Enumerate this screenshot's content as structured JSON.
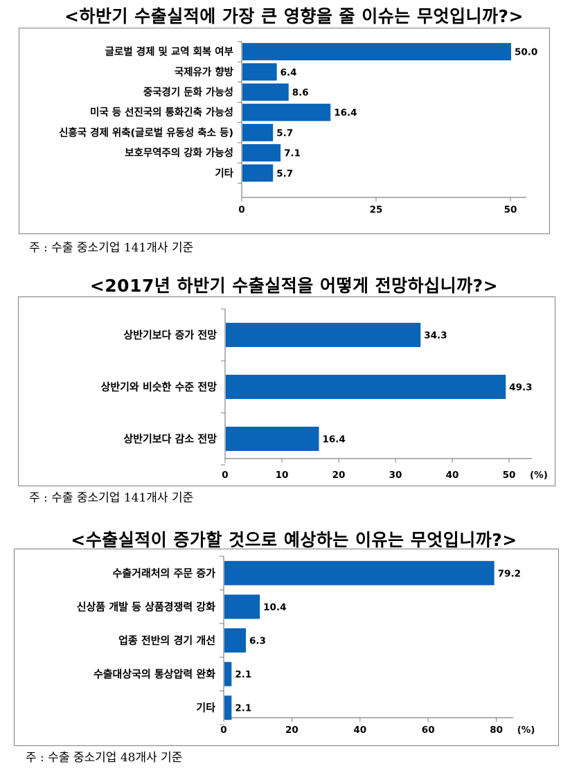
{
  "charts": [
    {
      "title": "<하반기 수출실적에 가장 큰 영향을 줄 이슈는 무엇입니까?>",
      "note": "주 : 수출 중소기업 141개사 기준",
      "axis_unit": ""
    },
    {
      "title": "<2017년 하반기 수출실적을 어떻게 전망하십니까?>",
      "note": "주 : 수출 중소기업 141개사 기준",
      "axis_unit": "(%)"
    },
    {
      "title": "<수출실적이 증가할 것으로 예상하는 이유는 무엇입니까?>",
      "note": "주 : 수출 중소기업 48개사 기준",
      "axis_unit": "(%)"
    }
  ],
  "colors": {
    "bar": "#0a64b8",
    "frame": "#7f7f7f",
    "axis": "#808080"
  },
  "chart_data": [
    {
      "type": "bar",
      "orientation": "horizontal",
      "title": "<하반기 수출실적에 가장 큰 영향을 줄 이슈는 무엇입니까?>",
      "categories": [
        "글로벌 경제 및 교역 회복 여부",
        "국제유가 향방",
        "중국경기 둔화 가능성",
        "미국 등 선진국의 통화긴축 가능성",
        "신흥국 경제 위축(글로벌 유동성 축소 등)",
        "보호무역주의 강화 가능성",
        "기타"
      ],
      "values": [
        50.0,
        6.4,
        8.6,
        16.4,
        5.7,
        7.1,
        5.7
      ],
      "value_labels": [
        "50.0",
        "6.4",
        "8.6",
        "16.4",
        "5.7",
        "7.1",
        "5.7"
      ],
      "xlim": [
        0,
        53
      ],
      "xticks": [
        0,
        25,
        50
      ],
      "xtick_labels": [
        "0",
        "25",
        "50"
      ],
      "grid": false,
      "legend": "none"
    },
    {
      "type": "bar",
      "orientation": "horizontal",
      "title": "<2017년 하반기 수출실적을 어떻게 전망하십니까?>",
      "categories": [
        "상반기보다 증가 전망",
        "상반기와 비슷한 수준 전망",
        "상반기보다 감소 전망"
      ],
      "values": [
        34.3,
        49.3,
        16.4
      ],
      "value_labels": [
        "34.3",
        "49.3",
        "16.4"
      ],
      "xlim": [
        0,
        54
      ],
      "xticks": [
        0,
        10,
        20,
        30,
        40,
        50
      ],
      "xtick_labels": [
        "0",
        "10",
        "20",
        "30",
        "40",
        "50"
      ],
      "xunit": "(%)",
      "grid": false,
      "legend": "none"
    },
    {
      "type": "bar",
      "orientation": "horizontal",
      "title": "<수출실적이 증가할 것으로 예상하는 이유는 무엇입니까?>",
      "categories": [
        "수출거래처의 주문 증가",
        "신상품 개발 등 상품경쟁력 강화",
        "업종 전반의 경기 개선",
        "수출대상국의 통상압력 완화",
        "기타"
      ],
      "values": [
        79.2,
        10.4,
        6.3,
        2.1,
        2.1
      ],
      "value_labels": [
        "79.2",
        "10.4",
        "6.3",
        "2.1",
        "2.1"
      ],
      "xlim": [
        0,
        85
      ],
      "xticks": [
        0,
        20,
        40,
        60,
        80
      ],
      "xtick_labels": [
        "0",
        "20",
        "40",
        "60",
        "80"
      ],
      "xunit": "(%)",
      "grid": false,
      "legend": "none"
    }
  ]
}
